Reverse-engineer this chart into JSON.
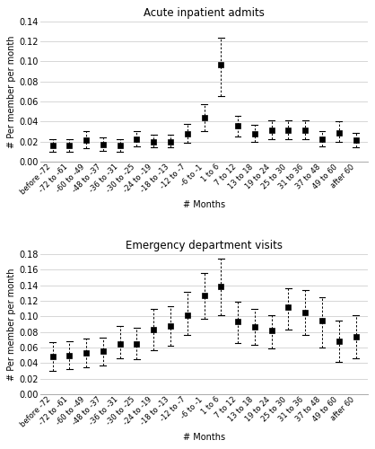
{
  "chart1": {
    "title": "Acute inpatient admits",
    "ylabel": "# Per member per month",
    "xlabel": "# Months",
    "ylim": [
      0.0,
      0.14
    ],
    "yticks": [
      0.0,
      0.02,
      0.04,
      0.06,
      0.08,
      0.1,
      0.12,
      0.14
    ],
    "categories": [
      "before -72",
      "-72 to -61",
      "-60 to -49",
      "-48 to -37",
      "-36 to -31",
      "-30 to -25",
      "-24 to -19",
      "-18 to -13",
      "-12 to -7",
      "-6 to -1",
      "1 to 6",
      "7 to 12",
      "13 to 18",
      "19 to 24",
      "25 to 30",
      "31 to 36",
      "37 to 48",
      "49 to 60",
      "after 60"
    ],
    "values": [
      0.016,
      0.016,
      0.021,
      0.017,
      0.016,
      0.022,
      0.02,
      0.02,
      0.028,
      0.044,
      0.097,
      0.036,
      0.028,
      0.031,
      0.031,
      0.031,
      0.022,
      0.029,
      0.021
    ],
    "lower": [
      0.01,
      0.01,
      0.013,
      0.011,
      0.01,
      0.015,
      0.014,
      0.014,
      0.019,
      0.03,
      0.065,
      0.025,
      0.02,
      0.022,
      0.022,
      0.022,
      0.015,
      0.02,
      0.014
    ],
    "upper": [
      0.022,
      0.022,
      0.03,
      0.024,
      0.022,
      0.03,
      0.027,
      0.027,
      0.038,
      0.057,
      0.124,
      0.046,
      0.037,
      0.041,
      0.041,
      0.041,
      0.03,
      0.04,
      0.029
    ]
  },
  "chart2": {
    "title": "Emergency department visits",
    "ylabel": "# Per member per month",
    "xlabel": "# Months",
    "ylim": [
      0.0,
      0.18
    ],
    "yticks": [
      0.0,
      0.02,
      0.04,
      0.06,
      0.08,
      0.1,
      0.12,
      0.14,
      0.16,
      0.18
    ],
    "categories": [
      "before -72",
      "-72 to -61",
      "-60 to -49",
      "-48 to -37",
      "-36 to -31",
      "-30 to -25",
      "-24 to -19",
      "-18 to -13",
      "-12 to -7",
      "-6 to -1",
      "1 to 6",
      "7 to 12",
      "13 to 18",
      "19 to 24",
      "25 to 30",
      "31 to 36",
      "37 to 48",
      "49 to 60",
      "after 60"
    ],
    "values": [
      0.048,
      0.05,
      0.053,
      0.055,
      0.065,
      0.065,
      0.083,
      0.088,
      0.101,
      0.127,
      0.138,
      0.093,
      0.087,
      0.082,
      0.112,
      0.105,
      0.094,
      0.068,
      0.074
    ],
    "lower": [
      0.03,
      0.032,
      0.035,
      0.037,
      0.046,
      0.045,
      0.057,
      0.062,
      0.076,
      0.097,
      0.102,
      0.066,
      0.063,
      0.059,
      0.083,
      0.076,
      0.06,
      0.041,
      0.046
    ],
    "upper": [
      0.067,
      0.068,
      0.072,
      0.073,
      0.088,
      0.085,
      0.109,
      0.113,
      0.132,
      0.156,
      0.174,
      0.119,
      0.11,
      0.101,
      0.136,
      0.134,
      0.124,
      0.094,
      0.101
    ]
  },
  "marker_color": "#000000",
  "line_color": "#000000",
  "bg_color": "#ffffff",
  "grid_color": "#d0d0d0",
  "title_fontsize": 8.5,
  "label_fontsize": 7.0,
  "tick_fontsize": 6.0,
  "ytick_fontsize": 7.0
}
